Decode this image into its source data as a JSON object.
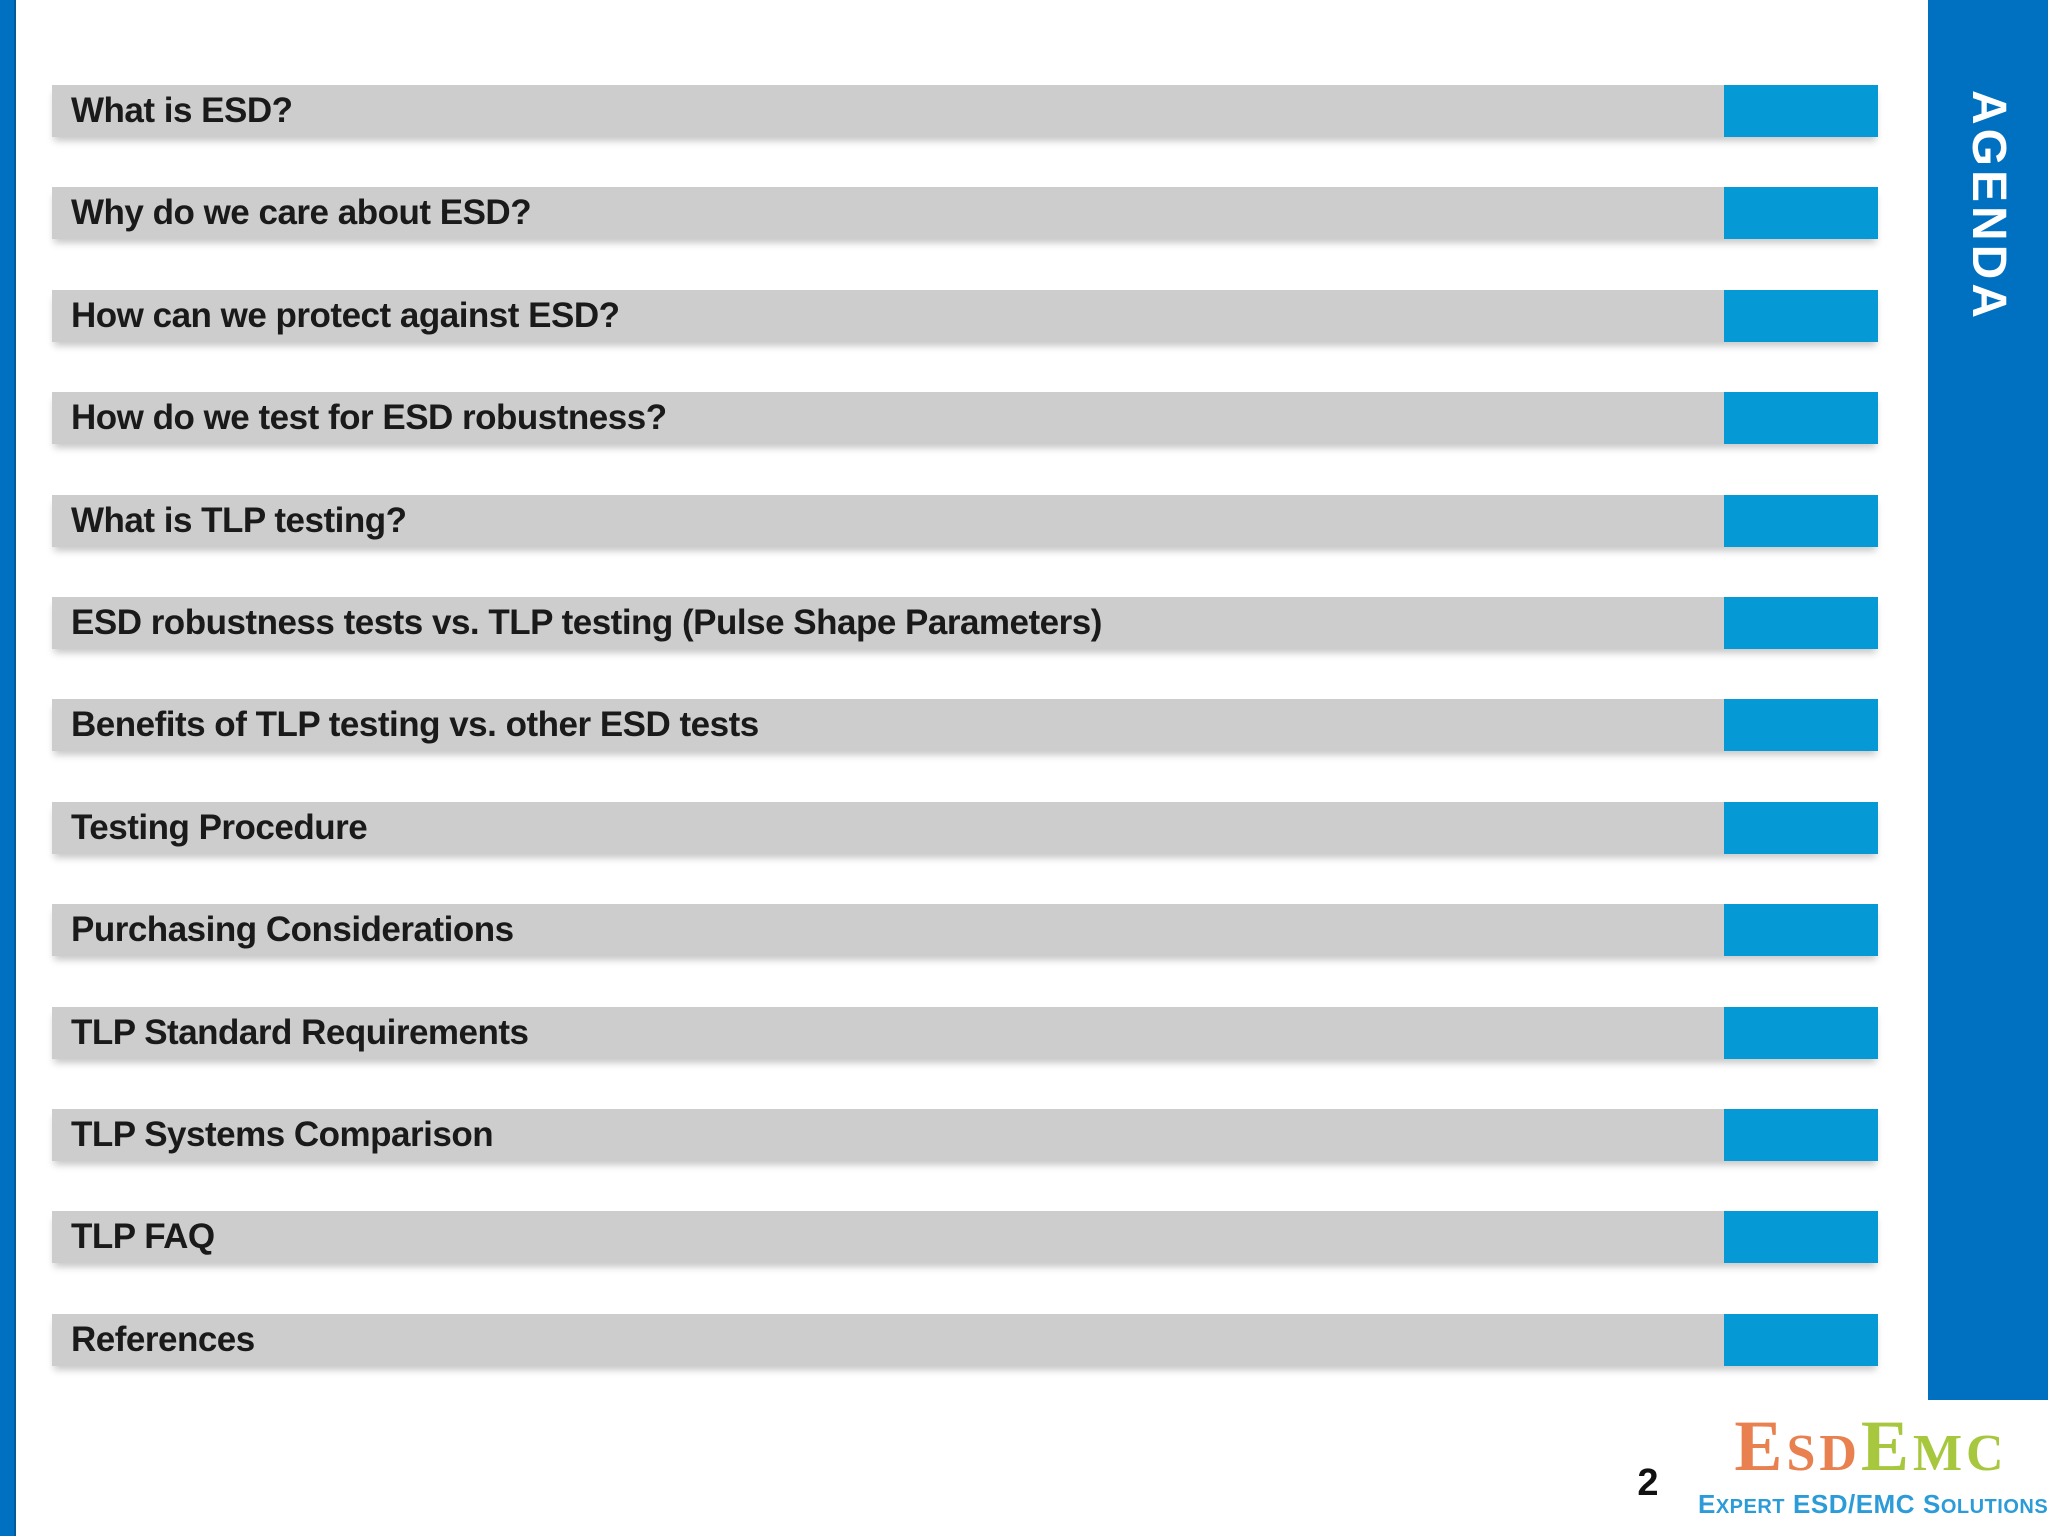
{
  "theme": {
    "brand-blue": "#0070C0",
    "accent-blue": "#0599D6",
    "bar-gray": "#CDCDCD",
    "text-dark": "#1A1A1A",
    "logo-orange": "#E8814F",
    "logo-green": "#A7C83E",
    "tagline-blue": "#2B9CD8"
  },
  "sidebar": {
    "label": "AGENDA"
  },
  "agenda": {
    "items": [
      {
        "label": "What is ESD?"
      },
      {
        "label": "Why do we care about ESD?"
      },
      {
        "label": "How can we protect against ESD?"
      },
      {
        "label": "How do we test for ESD robustness?"
      },
      {
        "label": "What is TLP testing?"
      },
      {
        "label": "ESD robustness tests vs. TLP testing (Pulse Shape Parameters)"
      },
      {
        "label": "Benefits of TLP testing vs. other ESD tests"
      },
      {
        "label": "Testing Procedure"
      },
      {
        "label": "Purchasing Considerations"
      },
      {
        "label": "TLP Standard Requirements"
      },
      {
        "label": "TLP Systems Comparison"
      },
      {
        "label": "TLP FAQ"
      },
      {
        "label": "References"
      }
    ]
  },
  "footer": {
    "page_number": "2",
    "logo": {
      "word1_initial": "E",
      "word1_rest": "sd",
      "word2_initial": "E",
      "word2_rest": "mc",
      "tagline_word1_initial": "E",
      "tagline_word1_rest": "xpert",
      "tagline_middle": "ESD/EMC",
      "tagline_word2_initial": "S",
      "tagline_word2_rest": "olutions"
    }
  }
}
